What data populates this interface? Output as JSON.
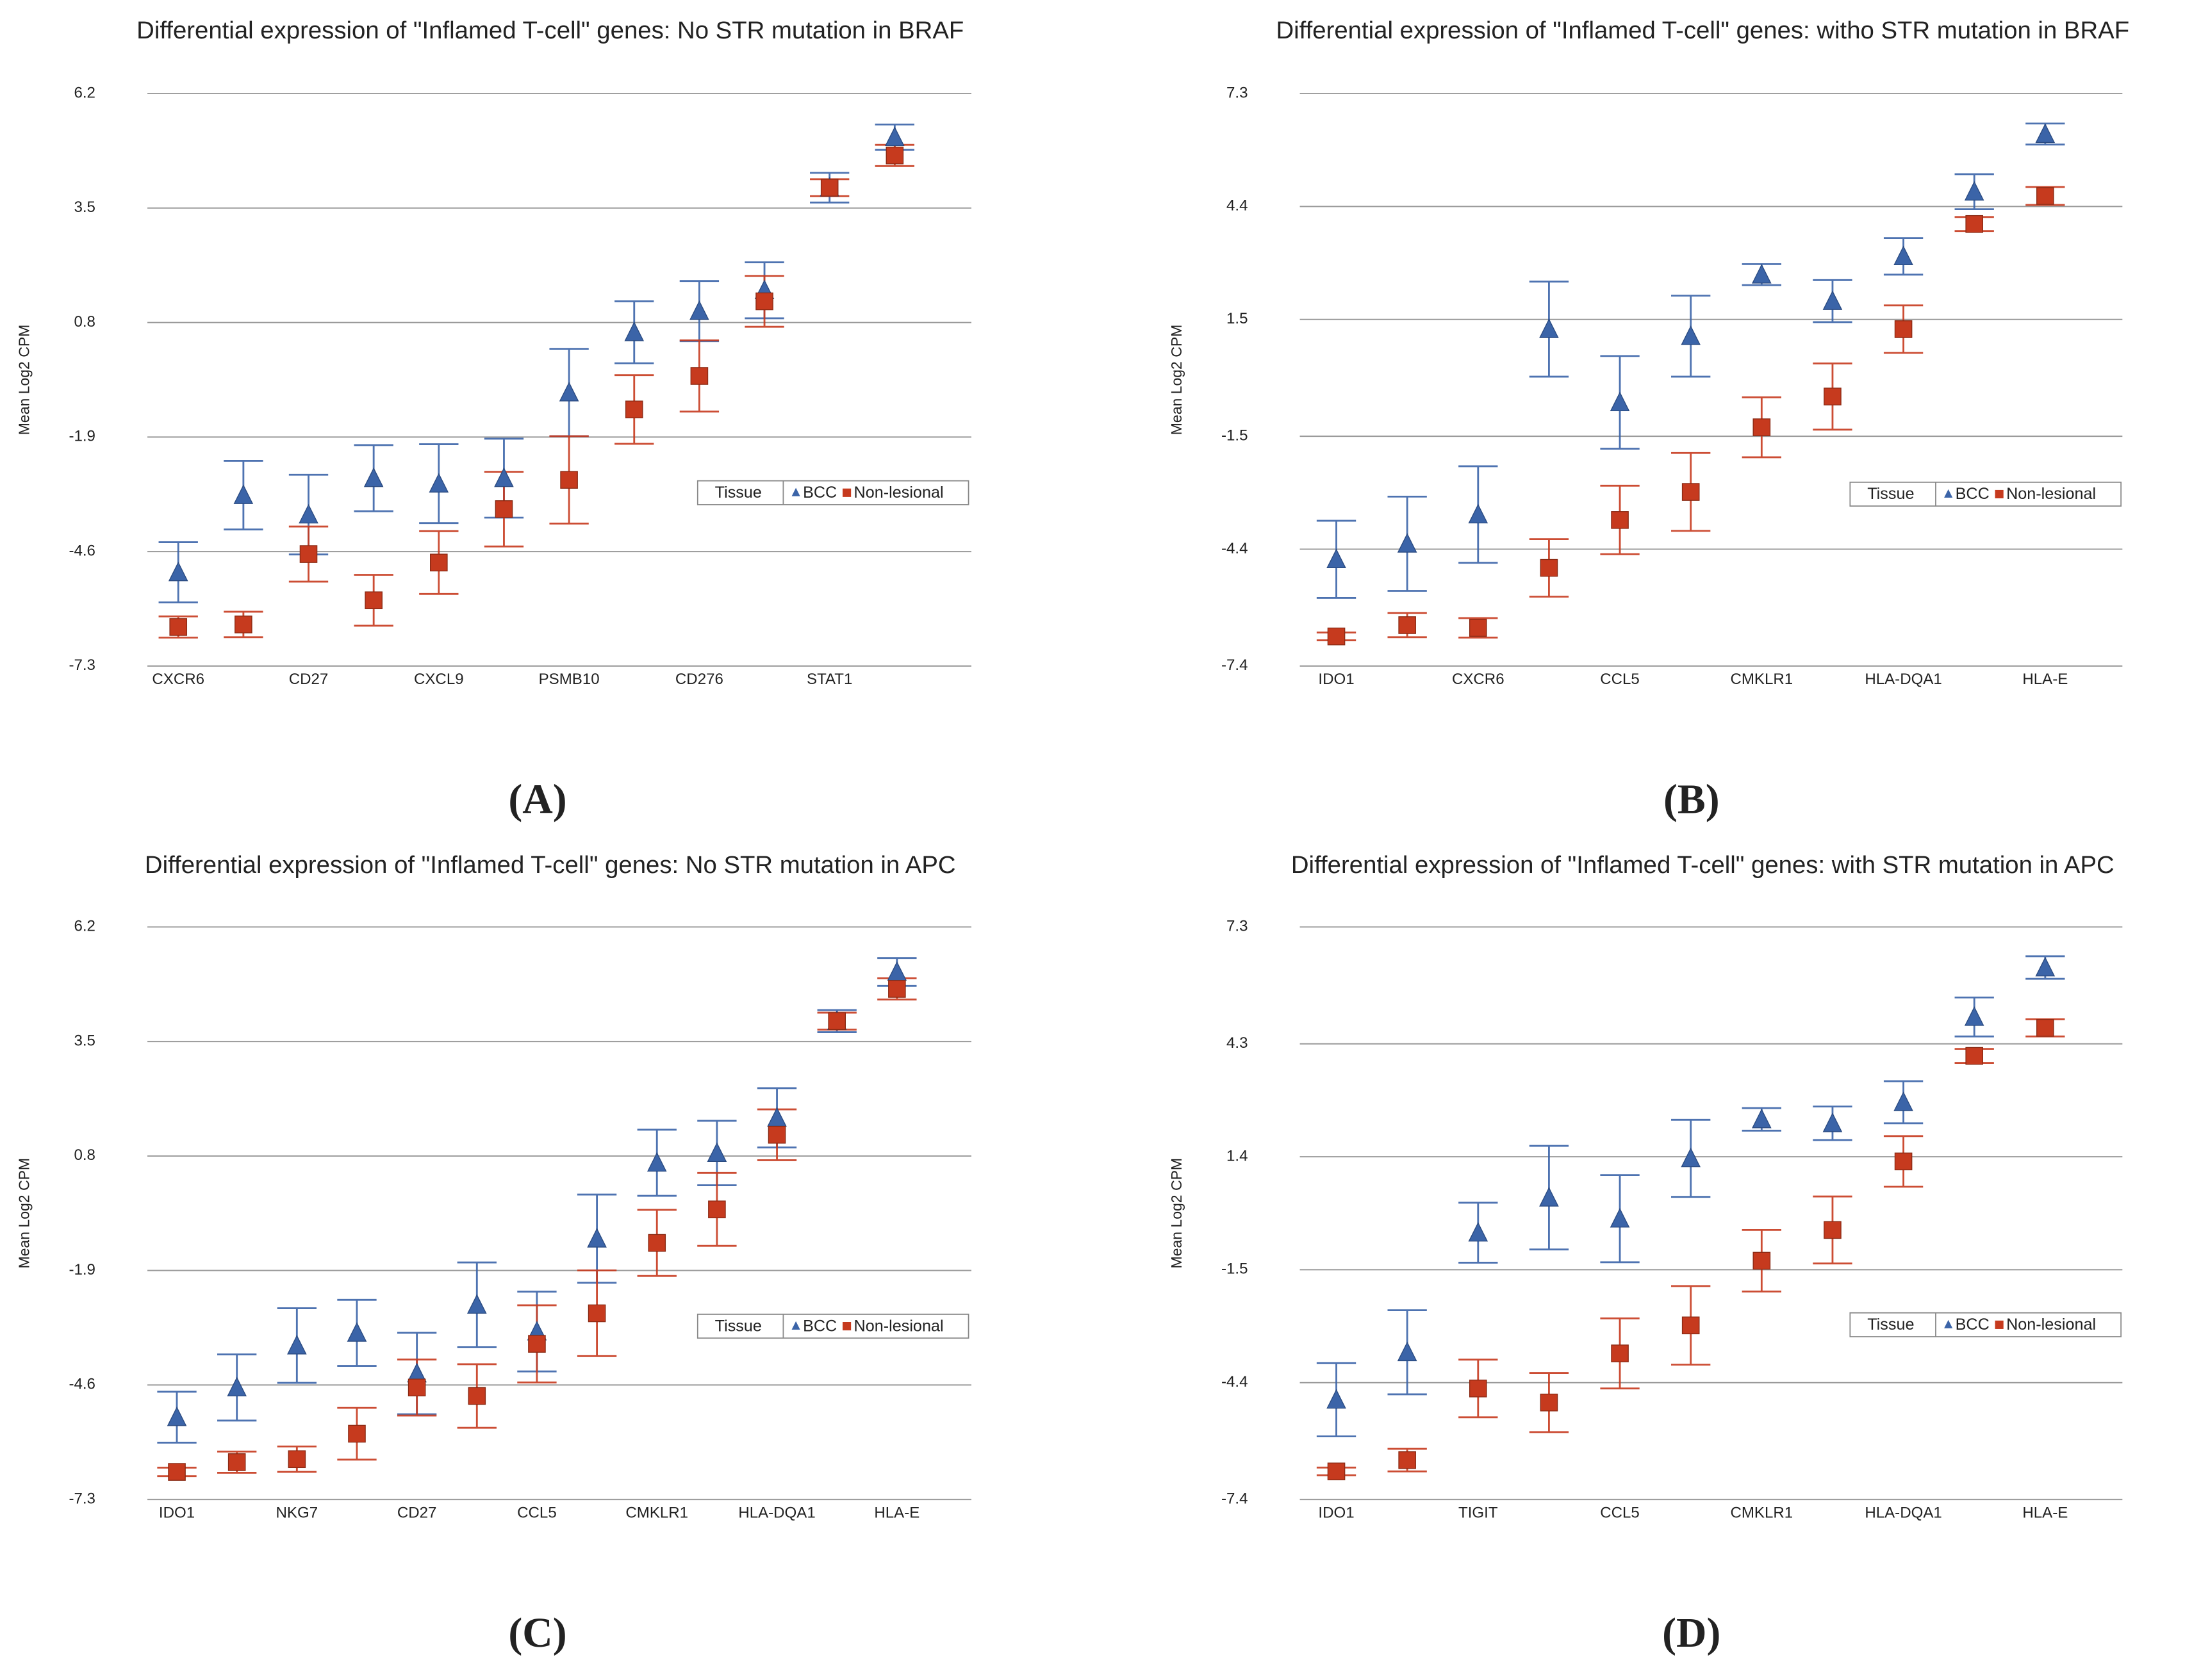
{
  "chart_data": [
    {
      "type": "errorbar",
      "title": "Differential expression of \"Inflamed T-cell\" genes: No STR mutation in BRAF",
      "panel_label": "(A)",
      "y_label": "Mean Log2 CPM",
      "legend_title": "Tissue",
      "categories": [
        "CXCR6",
        null,
        "CD27",
        null,
        "CXCL9",
        null,
        "PSMB10",
        null,
        "CD276",
        null,
        "STAT1",
        null
      ],
      "ylim": [
        -7.3,
        6.2
      ],
      "yticks": [
        -7.3,
        -4.6,
        -1.9,
        0.8,
        3.5,
        6.2
      ],
      "grid": true,
      "series": [
        {
          "name": "BCC",
          "marker": "triangle",
          "color": "#3b64a8",
          "values": [
            -5.09,
            -3.27,
            -3.73,
            -2.87,
            -3.0,
            -2.87,
            -0.85,
            0.57,
            1.07,
            1.56,
            3.98,
            5.17
          ],
          "errors": [
            0.71,
            0.81,
            0.94,
            0.78,
            0.93,
            0.93,
            1.03,
            0.73,
            0.71,
            0.66,
            0.35,
            0.3
          ]
        },
        {
          "name": "Non-lesional",
          "marker": "square",
          "color": "#c63a1e",
          "values": [
            -6.38,
            -6.32,
            -4.66,
            -5.75,
            -4.86,
            -3.6,
            -2.91,
            -1.25,
            -0.46,
            1.3,
            3.98,
            4.74
          ],
          "errors": [
            0.25,
            0.3,
            0.65,
            0.6,
            0.74,
            0.88,
            1.03,
            0.81,
            0.84,
            0.6,
            0.2,
            0.25
          ]
        }
      ]
    },
    {
      "type": "errorbar",
      "title": "Differential expression of \"Inflamed T-cell\" genes: witho STR mutation in BRAF",
      "panel_label": "(B)",
      "y_label": "Mean Log2 CPM",
      "legend_title": "Tissue",
      "categories": [
        "IDO1",
        null,
        "CXCR6",
        null,
        "CCL5",
        null,
        "CMKLR1",
        null,
        "HLA-DQA1",
        null,
        "HLA-E"
      ],
      "ylim": [
        -7.4,
        7.3
      ],
      "yticks": [
        -7.4,
        -4.4,
        -1.5,
        1.5,
        4.4,
        7.3
      ],
      "grid": true,
      "series": [
        {
          "name": "BCC",
          "marker": "triangle",
          "color": "#3b64a8",
          "values": [
            -4.66,
            -4.26,
            -3.51,
            1.25,
            -0.63,
            1.07,
            2.65,
            1.97,
            3.12,
            4.78,
            6.26
          ],
          "errors": [
            0.99,
            1.21,
            1.24,
            1.22,
            1.19,
            1.04,
            0.27,
            0.54,
            0.47,
            0.45,
            0.27
          ]
        },
        {
          "name": "Non-lesional",
          "marker": "square",
          "color": "#c63a1e",
          "values": [
            -6.64,
            -6.35,
            -6.42,
            -4.88,
            -3.65,
            -2.93,
            -1.27,
            -0.48,
            1.25,
            3.95,
            4.67
          ],
          "errors": [
            0.1,
            0.31,
            0.25,
            0.74,
            0.88,
            1.0,
            0.77,
            0.85,
            0.61,
            0.18,
            0.23
          ]
        }
      ]
    },
    {
      "type": "errorbar",
      "title": "Differential expression of \"Inflamed T-cell\" genes: No STR mutation in APC",
      "panel_label": "(C)",
      "y_label": "Mean Log2 CPM",
      "legend_title": "Tissue",
      "categories": [
        "IDO1",
        null,
        "NKG7",
        null,
        "CD27",
        null,
        "CCL5",
        null,
        "CMKLR1",
        null,
        "HLA-DQA1",
        null,
        "HLA-E"
      ],
      "ylim": [
        -7.3,
        6.2
      ],
      "yticks": [
        -7.3,
        -4.6,
        -1.9,
        0.8,
        3.5,
        6.2
      ],
      "grid": true,
      "series": [
        {
          "name": "BCC",
          "marker": "triangle",
          "color": "#3b64a8",
          "values": [
            -5.36,
            -4.66,
            -3.67,
            -3.37,
            -4.33,
            -2.71,
            -3.34,
            -1.15,
            0.64,
            0.87,
            1.7,
            3.98,
            5.14
          ],
          "errors": [
            0.6,
            0.78,
            0.88,
            0.78,
            0.96,
            1.0,
            0.94,
            1.04,
            0.78,
            0.76,
            0.7,
            0.26,
            0.33
          ]
        },
        {
          "name": "Non-lesional",
          "marker": "square",
          "color": "#c63a1e",
          "values": [
            -6.65,
            -6.42,
            -6.35,
            -5.75,
            -4.66,
            -4.86,
            -3.63,
            -2.91,
            -1.25,
            -0.46,
            1.3,
            3.98,
            4.74
          ],
          "errors": [
            0.1,
            0.25,
            0.3,
            0.61,
            0.66,
            0.75,
            0.91,
            1.01,
            0.78,
            0.86,
            0.6,
            0.2,
            0.25
          ]
        }
      ]
    },
    {
      "type": "errorbar",
      "title": "Differential expression of \"Inflamed T-cell\" genes: with STR mutation in APC",
      "panel_label": "(D)",
      "y_label": "Mean Log2 CPM",
      "legend_title": "Tissue",
      "categories": [
        "IDO1",
        null,
        "TIGIT",
        null,
        "CCL5",
        null,
        "CMKLR1",
        null,
        "HLA-DQA1",
        null,
        "HLA-E"
      ],
      "ylim": [
        -7.4,
        7.3
      ],
      "yticks": [
        -7.4,
        -4.4,
        -1.5,
        1.4,
        4.3,
        7.3
      ],
      "grid": true,
      "series": [
        {
          "name": "BCC",
          "marker": "triangle",
          "color": "#3b64a8",
          "values": [
            -4.84,
            -3.62,
            -0.55,
            0.35,
            -0.19,
            1.36,
            2.36,
            2.26,
            2.8,
            4.99,
            6.26
          ],
          "errors": [
            0.94,
            1.08,
            0.77,
            1.33,
            1.12,
            0.99,
            0.29,
            0.43,
            0.54,
            0.5,
            0.29
          ]
        },
        {
          "name": "Non-lesional",
          "marker": "square",
          "color": "#c63a1e",
          "values": [
            -6.68,
            -6.39,
            -4.55,
            -4.91,
            -3.65,
            -2.93,
            -1.27,
            -0.48,
            1.28,
            3.99,
            4.71
          ],
          "errors": [
            0.1,
            0.29,
            0.74,
            0.76,
            0.9,
            1.01,
            0.79,
            0.86,
            0.65,
            0.18,
            0.22
          ]
        }
      ]
    }
  ]
}
